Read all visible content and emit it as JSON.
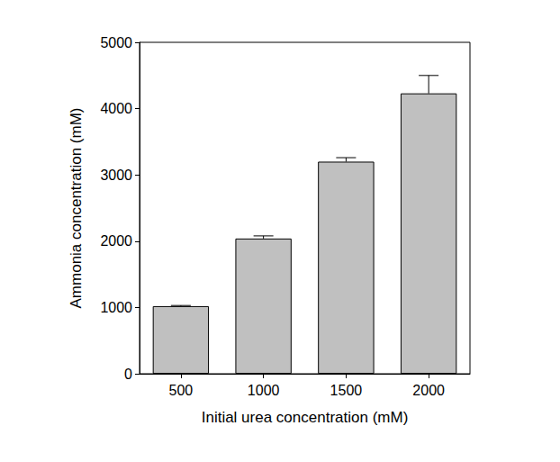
{
  "chart_data": {
    "type": "bar",
    "x_label": "Initial urea concentration (mM)",
    "y_label": "Ammonia concentration (mM)",
    "categories": [
      "500",
      "1000",
      "1500",
      "2000"
    ],
    "values": [
      1020,
      2040,
      3200,
      4230
    ],
    "errors": [
      10,
      40,
      60,
      270
    ],
    "color": "#c0c0c0",
    "ylim": [
      0,
      5000
    ],
    "yticks": [
      0,
      1000,
      2000,
      3000,
      4000,
      5000
    ],
    "grid": false
  }
}
